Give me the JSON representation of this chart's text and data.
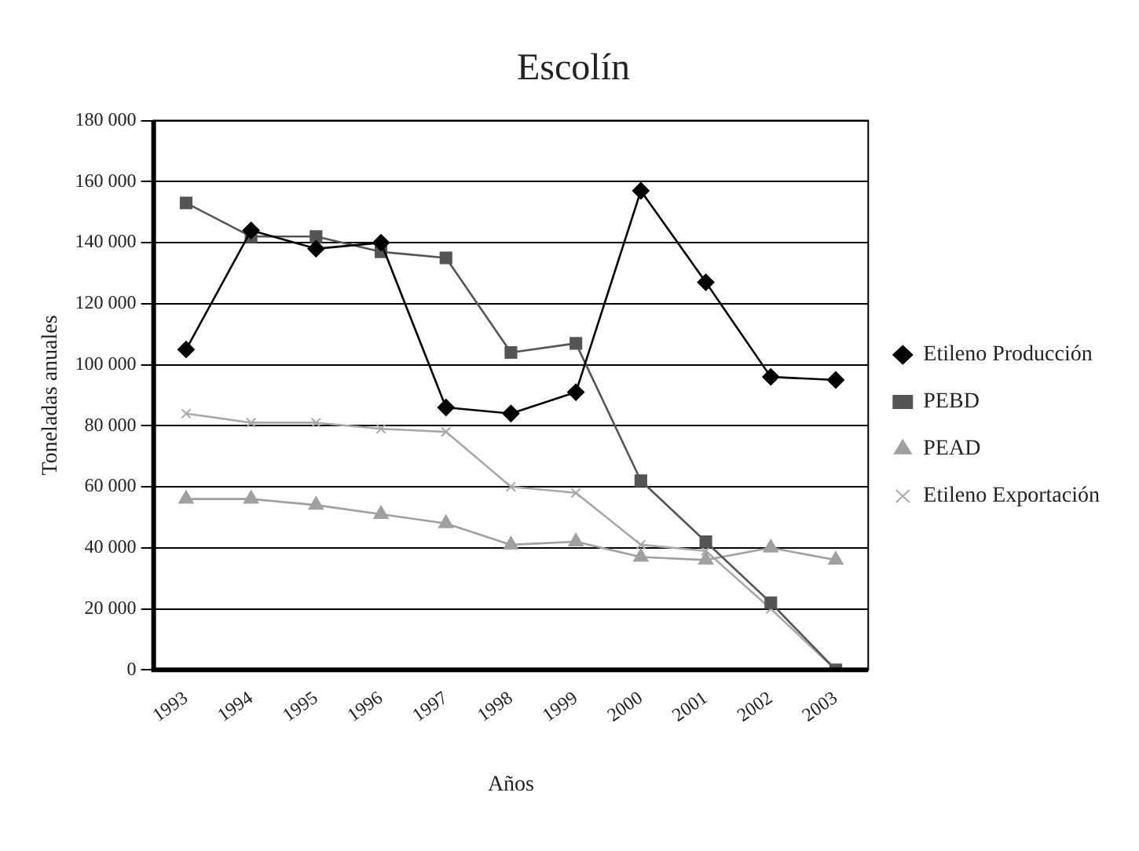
{
  "chart_data": {
    "type": "line",
    "title": "Escolín",
    "xlabel": "Años",
    "ylabel": "Toneladas anuales",
    "categories": [
      "1993",
      "1994",
      "1995",
      "1996",
      "1997",
      "1998",
      "1999",
      "2000",
      "2001",
      "2002",
      "2003"
    ],
    "series": [
      {
        "name": "Etileno Producción",
        "color": "#000000",
        "marker": "diamond",
        "values": [
          105000,
          144000,
          138000,
          140000,
          86000,
          84000,
          91000,
          157000,
          127000,
          96000,
          95000
        ]
      },
      {
        "name": "PEBD",
        "color": "#555555",
        "marker": "square",
        "values": [
          153000,
          142000,
          142000,
          137000,
          135000,
          104000,
          107000,
          62000,
          42000,
          22000,
          0
        ]
      },
      {
        "name": "PEAD",
        "color": "#a0a0a0",
        "marker": "triangle",
        "values": [
          56000,
          56000,
          54000,
          51000,
          48000,
          41000,
          42000,
          37000,
          36000,
          40000,
          36000
        ]
      },
      {
        "name": "Etileno Exportación",
        "color": "#a8a8a8",
        "marker": "cross",
        "values": [
          84000,
          81000,
          81000,
          79000,
          78000,
          60000,
          58000,
          41000,
          39000,
          20000,
          0
        ]
      }
    ],
    "ylim": [
      0,
      180000
    ],
    "yticks": [
      {
        "value": 0,
        "label": "0"
      },
      {
        "value": 20000,
        "label": "20 000"
      },
      {
        "value": 40000,
        "label": "40 000"
      },
      {
        "value": 60000,
        "label": "60 000"
      },
      {
        "value": 80000,
        "label": "80 000"
      },
      {
        "value": 100000,
        "label": "100 000"
      },
      {
        "value": 120000,
        "label": "120 000"
      },
      {
        "value": 140000,
        "label": "140 000"
      },
      {
        "value": 160000,
        "label": "160 000"
      },
      {
        "value": 180000,
        "label": "180 000"
      }
    ],
    "grid": "y",
    "legend": "right",
    "line_style": "solid"
  }
}
